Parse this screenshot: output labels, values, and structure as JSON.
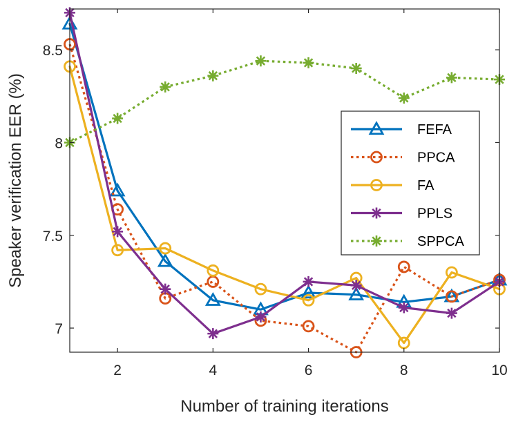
{
  "chart_data": {
    "type": "line",
    "xlabel": "Number of training iterations",
    "ylabel": "Speaker verification EER (%)",
    "xlim": [
      1,
      10
    ],
    "ylim": [
      6.87,
      8.72
    ],
    "xticks": [
      2,
      4,
      6,
      8,
      10
    ],
    "yticks": [
      7,
      7.5,
      8,
      8.5
    ],
    "grid": false,
    "legend_position": "right",
    "x": [
      1,
      2,
      3,
      4,
      5,
      6,
      7,
      8,
      9,
      10
    ],
    "series": [
      {
        "name": "FEFA",
        "color": "#0072BD",
        "marker": "triangle",
        "dash": "solid",
        "values": [
          8.64,
          7.74,
          7.36,
          7.15,
          7.1,
          7.19,
          7.18,
          7.14,
          7.17,
          7.26
        ]
      },
      {
        "name": "PPCA",
        "color": "#D95319",
        "marker": "circle",
        "dash": "dotted",
        "values": [
          8.53,
          7.64,
          7.16,
          7.25,
          7.04,
          7.01,
          6.87,
          7.33,
          7.17,
          7.26
        ]
      },
      {
        "name": "FA",
        "color": "#EDB120",
        "marker": "circle",
        "dash": "solid",
        "values": [
          8.41,
          7.42,
          7.43,
          7.31,
          7.21,
          7.15,
          7.27,
          6.92,
          7.3,
          7.21
        ]
      },
      {
        "name": "PPLS",
        "color": "#7E2F8E",
        "marker": "asterisk",
        "dash": "solid",
        "values": [
          8.7,
          7.52,
          7.21,
          6.97,
          7.06,
          7.25,
          7.23,
          7.11,
          7.08,
          7.25
        ]
      },
      {
        "name": "SPPCA",
        "color": "#77AC30",
        "marker": "asterisk",
        "dash": "dotted",
        "values": [
          8.0,
          8.13,
          8.3,
          8.36,
          8.44,
          8.43,
          8.4,
          8.24,
          8.35,
          8.34
        ]
      }
    ]
  }
}
